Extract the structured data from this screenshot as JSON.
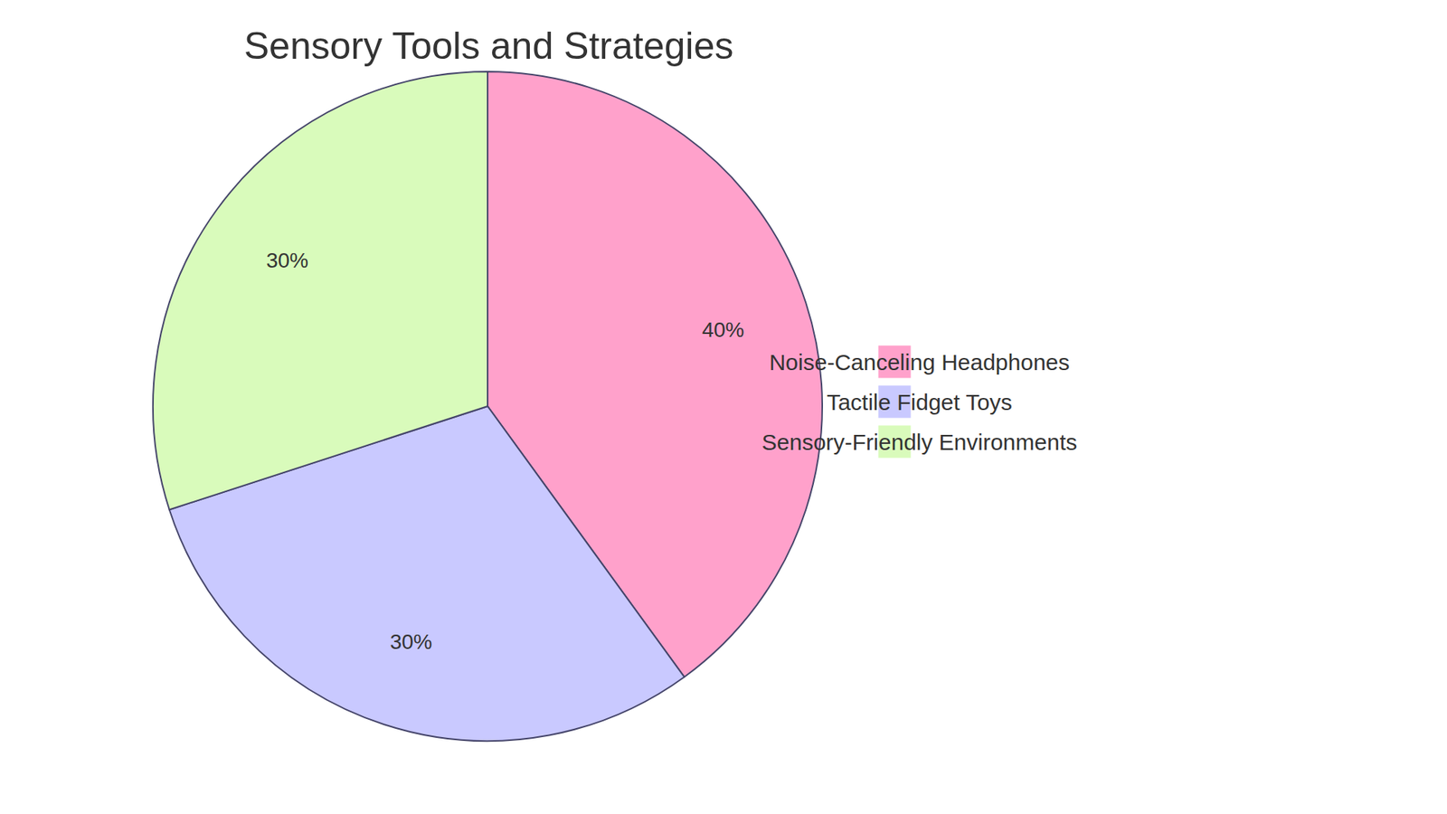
{
  "chart_data": {
    "type": "pie",
    "title": "Sensory Tools and Strategies",
    "categories": [
      "Noise-Canceling Headphones",
      "Tactile Fidget Toys",
      "Sensory-Friendly Environments"
    ],
    "values": [
      40,
      30,
      30
    ],
    "value_labels": [
      "40%",
      "30%",
      "30%"
    ],
    "colors": [
      "#ffa1cb",
      "#c9c9ff",
      "#d9fbbb"
    ],
    "data_labels": true,
    "legend": "right"
  }
}
